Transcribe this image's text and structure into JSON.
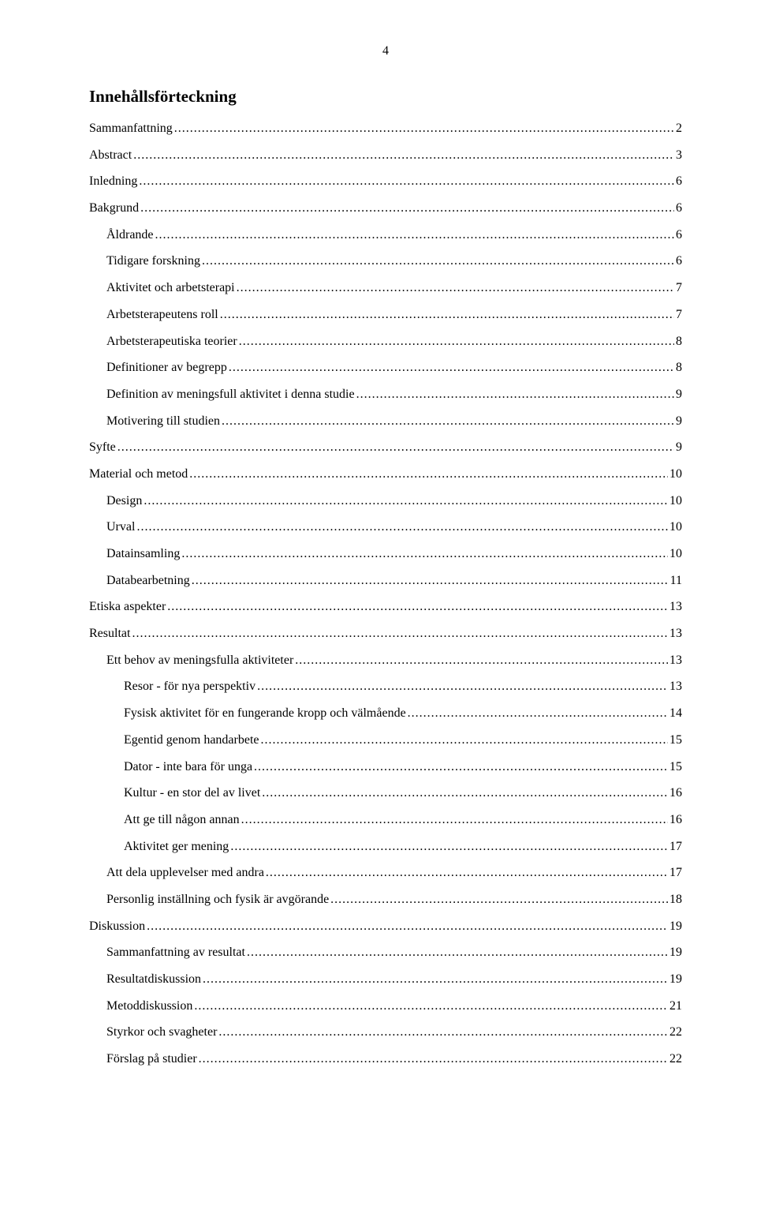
{
  "page_number": "4",
  "title": "Innehållsförteckning",
  "toc": [
    {
      "label": "Sammanfattning",
      "page": "2",
      "indent": 0
    },
    {
      "label": "Abstract",
      "page": "3",
      "indent": 0
    },
    {
      "label": "Inledning",
      "page": "6",
      "indent": 0
    },
    {
      "label": "Bakgrund",
      "page": "6",
      "indent": 0
    },
    {
      "label": "Åldrande",
      "page": "6",
      "indent": 1
    },
    {
      "label": "Tidigare forskning",
      "page": "6",
      "indent": 1
    },
    {
      "label": "Aktivitet och arbetsterapi",
      "page": "7",
      "indent": 1
    },
    {
      "label": "Arbetsterapeutens roll",
      "page": "7",
      "indent": 1
    },
    {
      "label": "Arbetsterapeutiska teorier",
      "page": "8",
      "indent": 1
    },
    {
      "label": "Definitioner av begrepp",
      "page": "8",
      "indent": 1
    },
    {
      "label": "Definition av meningsfull aktivitet i denna studie",
      "page": "9",
      "indent": 1
    },
    {
      "label": "Motivering till studien",
      "page": "9",
      "indent": 1
    },
    {
      "label": "Syfte",
      "page": "9",
      "indent": 0
    },
    {
      "label": "Material och metod",
      "page": "10",
      "indent": 0
    },
    {
      "label": "Design",
      "page": "10",
      "indent": 1
    },
    {
      "label": "Urval",
      "page": "10",
      "indent": 1
    },
    {
      "label": "Datainsamling",
      "page": "10",
      "indent": 1
    },
    {
      "label": "Databearbetning",
      "page": "11",
      "indent": 1
    },
    {
      "label": "Etiska aspekter",
      "page": "13",
      "indent": 0
    },
    {
      "label": "Resultat",
      "page": "13",
      "indent": 0
    },
    {
      "label": "Ett behov av meningsfulla aktiviteter",
      "page": "13",
      "indent": 1
    },
    {
      "label": "Resor - för nya perspektiv",
      "page": "13",
      "indent": 2
    },
    {
      "label": "Fysisk aktivitet för en fungerande kropp och välmående",
      "page": "14",
      "indent": 2
    },
    {
      "label": "Egentid genom handarbete",
      "page": "15",
      "indent": 2
    },
    {
      "label": "Dator - inte bara för unga",
      "page": "15",
      "indent": 2
    },
    {
      "label": "Kultur - en stor del av livet",
      "page": "16",
      "indent": 2
    },
    {
      "label": "Att ge till någon annan",
      "page": "16",
      "indent": 2
    },
    {
      "label": "Aktivitet ger mening",
      "page": "17",
      "indent": 2
    },
    {
      "label": "Att dela upplevelser med andra",
      "page": "17",
      "indent": 1
    },
    {
      "label": "Personlig inställning och fysik är avgörande",
      "page": "18",
      "indent": 1
    },
    {
      "label": "Diskussion",
      "page": "19",
      "indent": 0
    },
    {
      "label": "Sammanfattning av resultat",
      "page": "19",
      "indent": 1
    },
    {
      "label": "Resultatdiskussion",
      "page": "19",
      "indent": 1
    },
    {
      "label": "Metoddiskussion",
      "page": "21",
      "indent": 1
    },
    {
      "label": "Styrkor och svagheter",
      "page": "22",
      "indent": 1
    },
    {
      "label": "Förslag på studier",
      "page": "22",
      "indent": 1
    }
  ]
}
